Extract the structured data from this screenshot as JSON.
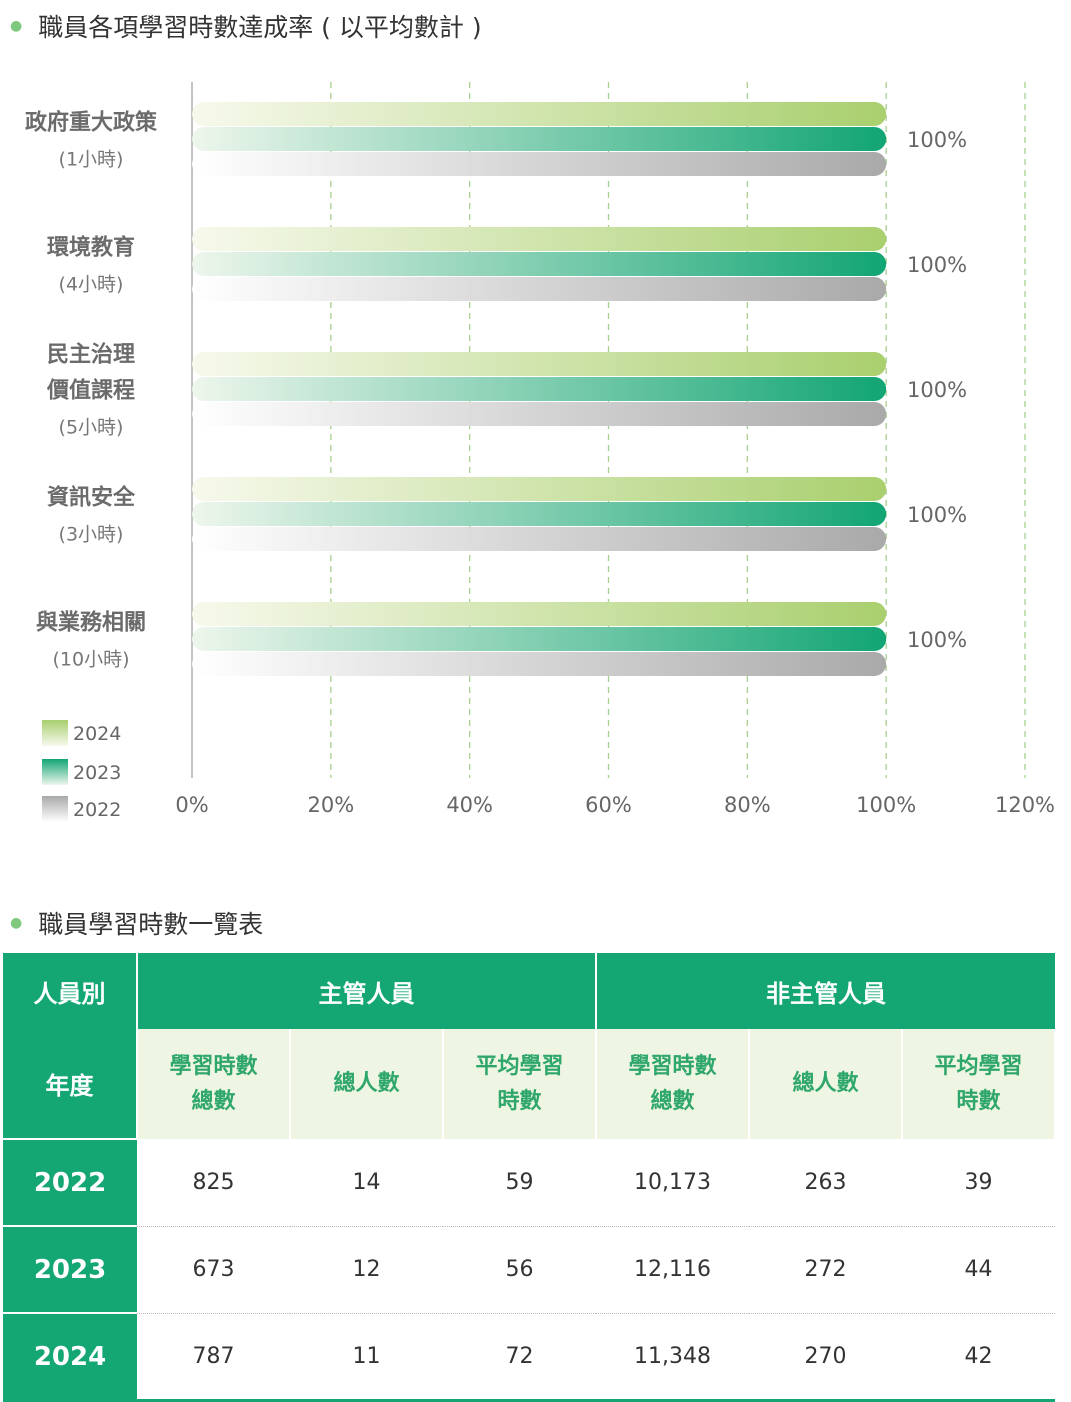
{
  "chart_section_title": "職員各項學習時數達成率 ( 以平均數計 )",
  "table_section_title": "職員學習時數一覽表",
  "chart_data": {
    "type": "bar",
    "orientation": "horizontal",
    "title": "職員各項學習時數達成率 ( 以平均數計 )",
    "categories": [
      {
        "name_lines": [
          "政府重大政策"
        ],
        "sub": "(1小時)"
      },
      {
        "name_lines": [
          "環境教育"
        ],
        "sub": "(4小時)"
      },
      {
        "name_lines": [
          "民主治理",
          "價值課程"
        ],
        "sub": "(5小時)"
      },
      {
        "name_lines": [
          "資訊安全"
        ],
        "sub": "(3小時)"
      },
      {
        "name_lines": [
          "與業務相關"
        ],
        "sub": "(10小時)"
      }
    ],
    "series": [
      {
        "name": "2024",
        "values": [
          100,
          100,
          100,
          100,
          100
        ],
        "color_start": "#f7f9ec",
        "color_end": "#a9cf6e"
      },
      {
        "name": "2023",
        "values": [
          100,
          100,
          100,
          100,
          100
        ],
        "color_start": "#eef6ec",
        "color_end": "#12a574"
      },
      {
        "name": "2022",
        "values": [
          100,
          100,
          100,
          100,
          100
        ],
        "color_start": "#ffffff",
        "color_end": "#a9a9a9"
      }
    ],
    "value_labels": [
      "100%",
      "100%",
      "100%",
      "100%",
      "100%"
    ],
    "xlim": [
      0,
      120
    ],
    "xticks": [
      "0%",
      "20%",
      "40%",
      "60%",
      "80%",
      "100%",
      "120%"
    ],
    "grid": true,
    "gridline_color": "#a9d18e",
    "legend": [
      "2024",
      "2023",
      "2022"
    ],
    "legend_position": "bottom-left"
  },
  "table": {
    "header_row1": {
      "col0": "人員別",
      "group1": "主管人員",
      "group2": "非主管人員"
    },
    "header_row2": {
      "col0": "年度",
      "cols": [
        "學習時數\n總數",
        "總人數",
        "平均學習\n時數",
        "學習時數\n總數",
        "總人數",
        "平均學習\n時數"
      ]
    },
    "rows": [
      {
        "year": "2022",
        "values": [
          "825",
          "14",
          "59",
          "10,173",
          "263",
          "39"
        ]
      },
      {
        "year": "2023",
        "values": [
          "673",
          "12",
          "56",
          "12,116",
          "272",
          "44"
        ]
      },
      {
        "year": "2024",
        "values": [
          "787",
          "11",
          "72",
          "11,348",
          "270",
          "42"
        ]
      }
    ]
  }
}
